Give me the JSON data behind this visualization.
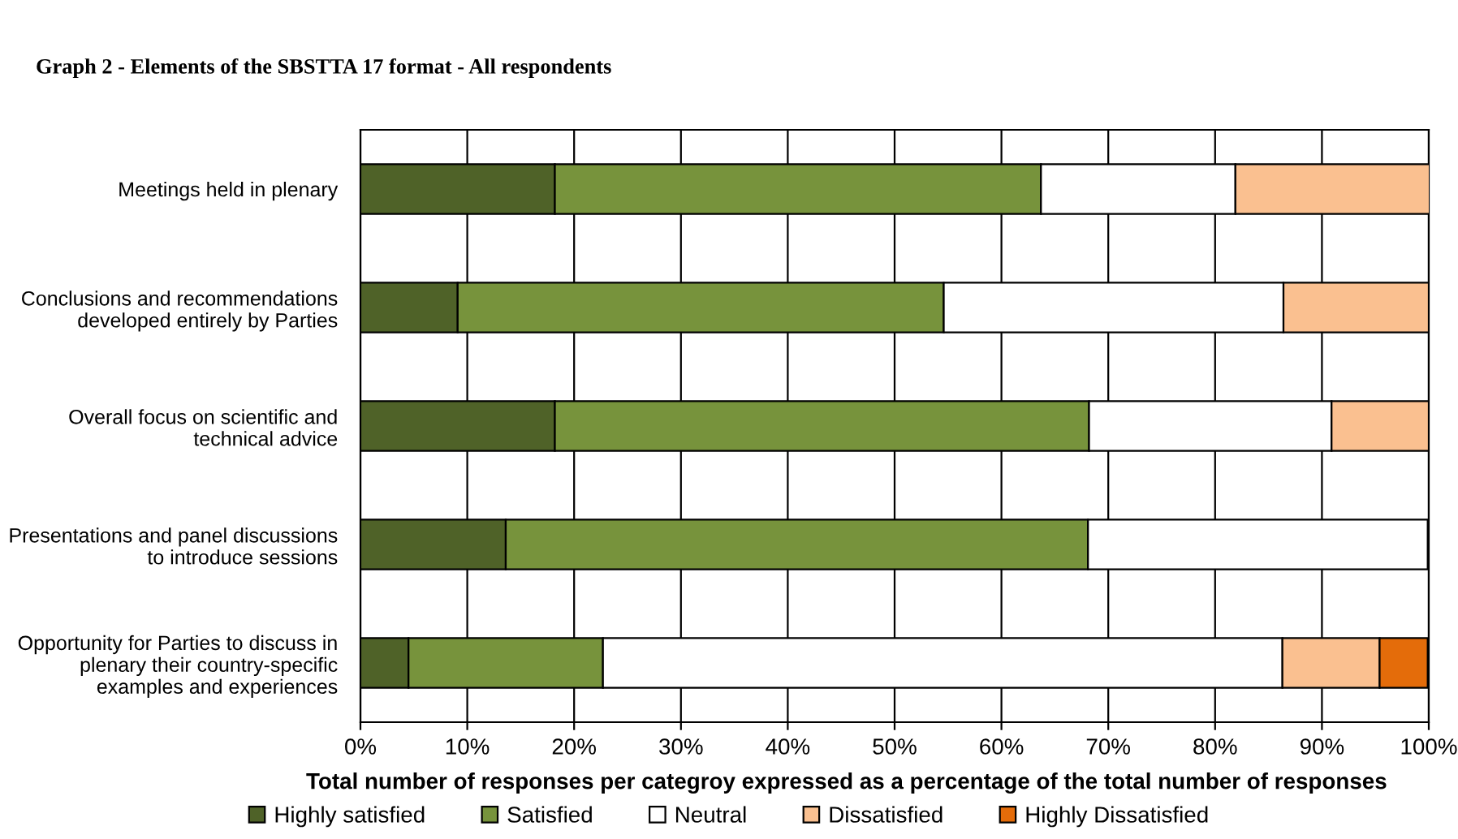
{
  "chart_data": {
    "type": "bar",
    "orientation": "horizontal",
    "stacked": true,
    "title": "Graph 2 - Elements of the SBSTTA 17 format - All respondents",
    "xlabel": "Total number of responses per categroy expressed as a percentage of the total number of responses",
    "categories": [
      "Meetings held in plenary",
      "Conclusions and recommendations\ndeveloped entirely by Parties",
      "Overall focus on scientific and\ntechnical advice",
      "Presentations and panel discussions\nto introduce sessions",
      "Opportunity for Parties to discuss in\nplenary their country-specific\nexamples and experiences"
    ],
    "series": [
      {
        "name": "Highly satisfied",
        "color": "#4f6228",
        "values": [
          18.2,
          9.1,
          18.2,
          13.6,
          4.5
        ]
      },
      {
        "name": "Satisfied",
        "color": "#77933c",
        "values": [
          45.5,
          45.5,
          50.0,
          54.5,
          18.2
        ]
      },
      {
        "name": "Neutral",
        "color": "#ffffff",
        "values": [
          18.2,
          31.8,
          22.7,
          31.8,
          63.6
        ]
      },
      {
        "name": "Dissatisfied",
        "color": "#fac090",
        "values": [
          18.2,
          13.6,
          9.1,
          0,
          9.1
        ]
      },
      {
        "name": "Highly Dissatisfied",
        "color": "#e46c0a",
        "values": [
          0,
          0,
          0,
          0,
          4.5
        ]
      }
    ],
    "xlim": [
      0,
      100
    ],
    "xticks": [
      {
        "value": 0,
        "label": "0%"
      },
      {
        "value": 10,
        "label": "10%"
      },
      {
        "value": 20,
        "label": "20%"
      },
      {
        "value": 30,
        "label": "30%"
      },
      {
        "value": 40,
        "label": "40%"
      },
      {
        "value": 50,
        "label": "50%"
      },
      {
        "value": 60,
        "label": "60%"
      },
      {
        "value": 70,
        "label": "70%"
      },
      {
        "value": 80,
        "label": "80%"
      },
      {
        "value": 90,
        "label": "90%"
      },
      {
        "value": 100,
        "label": "100%"
      }
    ],
    "grid": "x",
    "legend": "bottom"
  }
}
